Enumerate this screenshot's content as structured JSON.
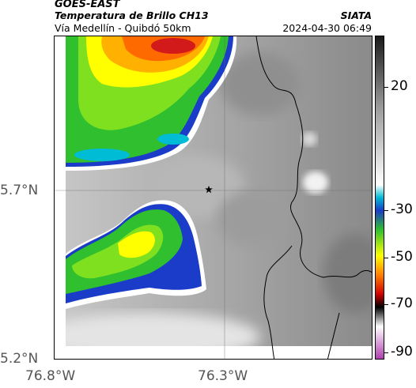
{
  "header": {
    "agency": "GOES-EAST",
    "title": "Temperatura de Brillo CH13",
    "subtitle": "Vía Medellín - Quibdó 50km",
    "organization": "SIATA",
    "datetime": "2024-04-30 06:49"
  },
  "map": {
    "lat_labels": [
      "5.7°N",
      "5.2°N"
    ],
    "lon_labels": [
      "76.8°W",
      "76.3°W"
    ],
    "marker": "star-icon"
  },
  "colorbar": {
    "labels": [
      "20",
      "-30",
      "-50",
      "-70",
      "-90"
    ],
    "colors": [
      "#1a1a1a",
      "#9a9a9a",
      "#ffffff",
      "#00bcd4",
      "#1a3cc8",
      "#2fbf2f",
      "#ffff00",
      "#ff7f00",
      "#d00000",
      "#000000",
      "#ffffff",
      "#b03fb0"
    ]
  }
}
